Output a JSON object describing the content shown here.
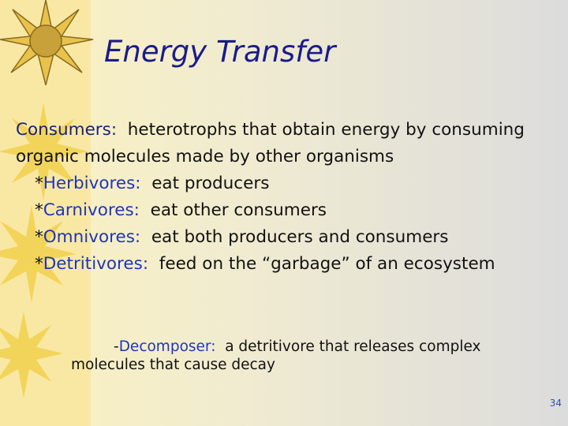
{
  "title": "Energy Transfer",
  "definition": {
    "term": "Consumers:",
    "text": "heterotrophs that obtain energy by consuming organic molecules made by other organisms"
  },
  "types": [
    {
      "marker": "*",
      "term": "Herbivores:",
      "text": "eat producers"
    },
    {
      "marker": "*",
      "term": "Carnivores:",
      "text": "eat other consumers"
    },
    {
      "marker": "*",
      "term": "Omnivores:",
      "text": "eat both producers and consumers"
    },
    {
      "marker": "*",
      "term": "Detritivores:",
      "text": "feed on the “garbage” of an ecosystem"
    }
  ],
  "subdefinition": {
    "marker": "-",
    "term": "Decomposer:",
    "text": "a detritivore that releases complex molecules that cause decay"
  },
  "page_number": "34"
}
